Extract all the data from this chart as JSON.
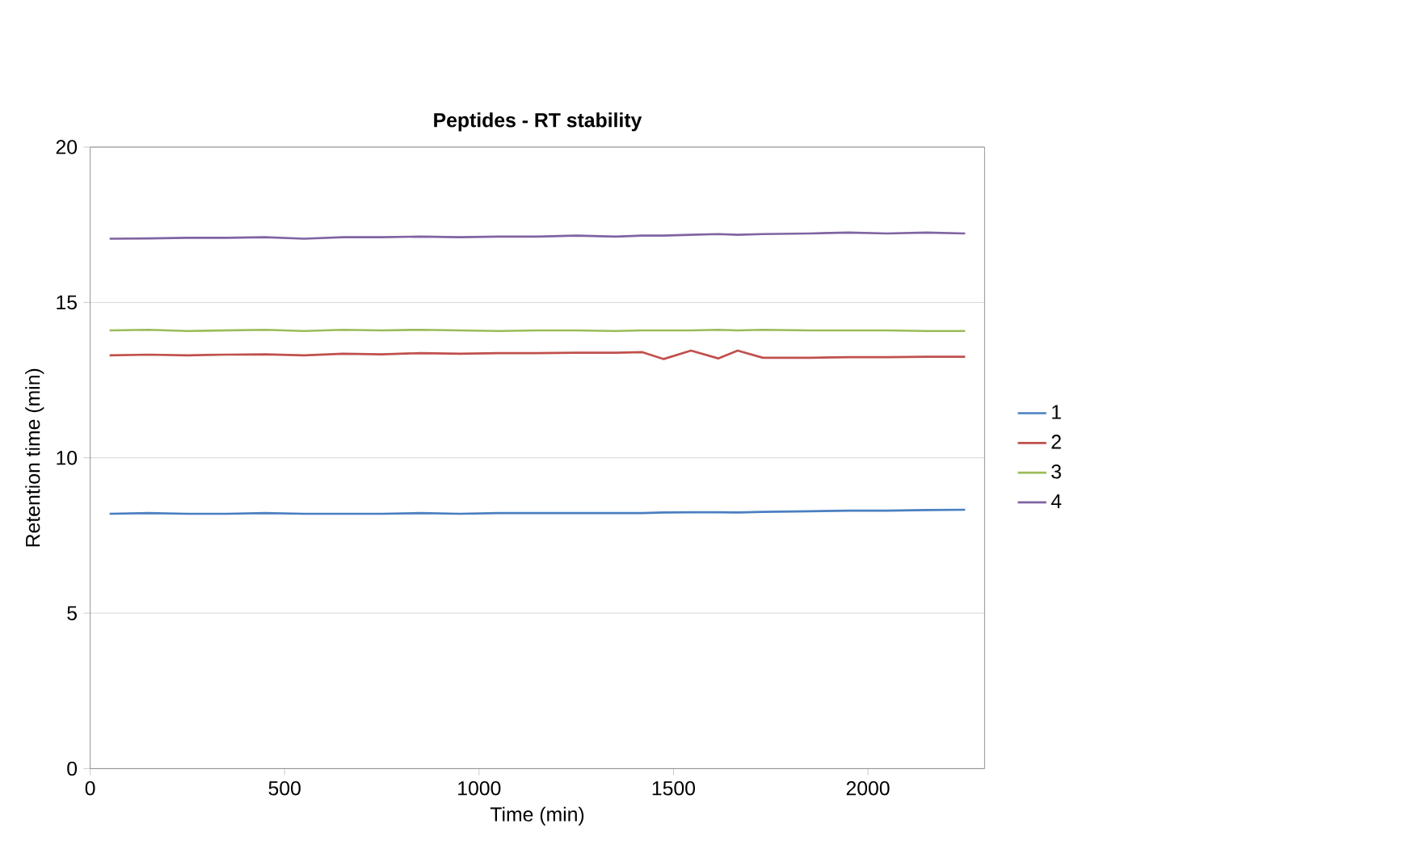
{
  "chart_data": {
    "type": "line",
    "title": "Peptides - RT stability",
    "xlabel": "Time (min)",
    "ylabel": "Retention time (min)",
    "xlim": [
      0,
      2300
    ],
    "xticks": [
      0,
      500,
      1000,
      1500,
      2000
    ],
    "ylim": [
      0,
      20
    ],
    "yticks": [
      0,
      5,
      10,
      15,
      20
    ],
    "grid": "y",
    "legend": "right",
    "marker": "none",
    "line_style": "solid",
    "x": [
      50,
      150,
      250,
      350,
      450,
      550,
      650,
      750,
      850,
      950,
      1050,
      1150,
      1250,
      1350,
      1420,
      1475,
      1545,
      1615,
      1665,
      1730,
      1850,
      1950,
      2050,
      2150,
      2250
    ],
    "series": [
      {
        "name": "1",
        "color": "#4a7fc1",
        "values": [
          8.2,
          8.22,
          8.2,
          8.2,
          8.22,
          8.2,
          8.2,
          8.2,
          8.22,
          8.2,
          8.22,
          8.22,
          8.22,
          8.22,
          8.22,
          8.24,
          8.25,
          8.25,
          8.24,
          8.26,
          8.28,
          8.3,
          8.3,
          8.32,
          8.33
        ]
      },
      {
        "name": "2",
        "color": "#c0504d",
        "values": [
          13.3,
          13.32,
          13.3,
          13.32,
          13.33,
          13.3,
          13.35,
          13.33,
          13.37,
          13.35,
          13.37,
          13.37,
          13.38,
          13.38,
          13.4,
          13.18,
          13.45,
          13.2,
          13.45,
          13.22,
          13.22,
          13.24,
          13.24,
          13.25,
          13.25
        ]
      },
      {
        "name": "3",
        "color": "#9bbb59",
        "values": [
          14.1,
          14.12,
          14.08,
          14.1,
          14.12,
          14.08,
          14.12,
          14.1,
          14.12,
          14.1,
          14.08,
          14.1,
          14.1,
          14.08,
          14.1,
          14.1,
          14.1,
          14.12,
          14.1,
          14.12,
          14.1,
          14.1,
          14.1,
          14.08,
          14.08
        ]
      },
      {
        "name": "4",
        "color": "#8064a2",
        "values": [
          17.05,
          17.06,
          17.08,
          17.08,
          17.1,
          17.05,
          17.1,
          17.1,
          17.12,
          17.1,
          17.12,
          17.12,
          17.15,
          17.12,
          17.15,
          17.15,
          17.18,
          17.2,
          17.18,
          17.2,
          17.22,
          17.25,
          17.22,
          17.25,
          17.22
        ]
      }
    ]
  }
}
